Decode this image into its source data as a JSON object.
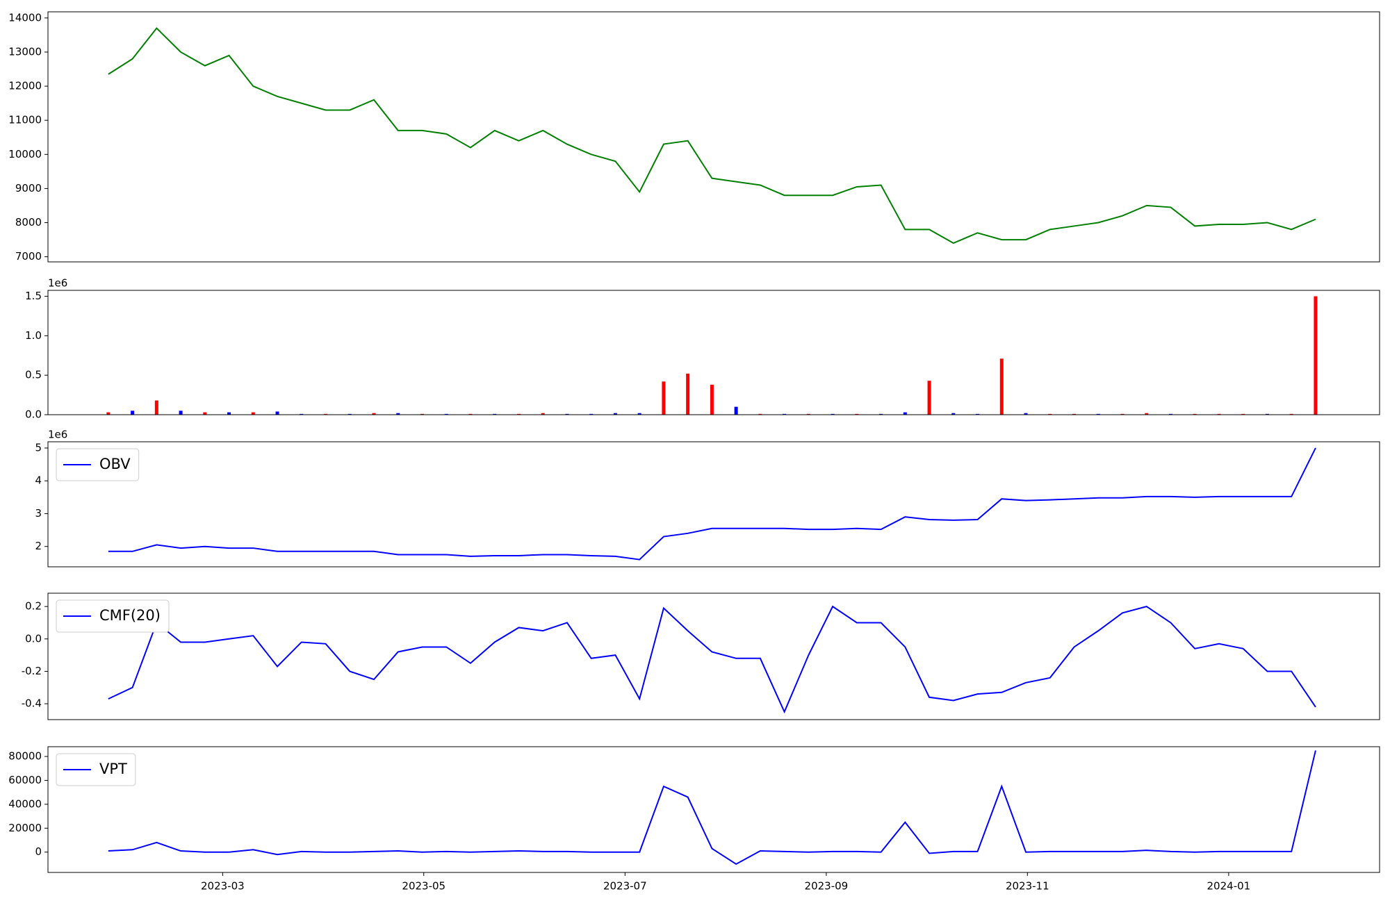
{
  "chart_data": [
    {
      "type": "line",
      "x": [
        2023.072,
        2023.092,
        2023.112,
        2023.132,
        2023.152,
        2023.172,
        2023.192,
        2023.212,
        2023.232,
        2023.252,
        2023.272,
        2023.292,
        2023.312,
        2023.332,
        2023.352,
        2023.372,
        2023.392,
        2023.412,
        2023.432,
        2023.452,
        2023.472,
        2023.492,
        2023.512,
        2023.532,
        2023.552,
        2023.572,
        2023.592,
        2023.612,
        2023.632,
        2023.652,
        2023.672,
        2023.692,
        2023.712,
        2023.732,
        2023.752,
        2023.772,
        2023.792,
        2023.812,
        2023.832,
        2023.852,
        2023.872,
        2023.892,
        2023.912,
        2023.932,
        2023.952,
        2023.972,
        2023.992,
        2024.012,
        2024.032,
        2024.052,
        2024.072
      ],
      "series": [
        {
          "color": "#008000",
          "values": [
            12350,
            12800,
            13700,
            13000,
            12600,
            12900,
            12000,
            11700,
            11500,
            11300,
            11300,
            11600,
            10700,
            10700,
            10600,
            10200,
            10700,
            10400,
            10700,
            10300,
            10000,
            9800,
            8900,
            10300,
            10400,
            9300,
            9200,
            9100,
            8800,
            8800,
            8800,
            9050,
            9100,
            7800,
            7800,
            7400,
            7700,
            7500,
            7500,
            7800,
            7900,
            8000,
            8200,
            8500,
            8450,
            7900,
            7950,
            7950,
            8000,
            7800,
            8100
          ]
        }
      ],
      "xlim": [
        2023.022,
        2024.125
      ],
      "ylim": [
        6850,
        14180
      ],
      "yticks": [
        7000,
        8000,
        9000,
        10000,
        11000,
        12000,
        13000,
        14000
      ]
    },
    {
      "type": "bar",
      "x": [
        2023.072,
        2023.092,
        2023.112,
        2023.132,
        2023.152,
        2023.172,
        2023.192,
        2023.212,
        2023.232,
        2023.252,
        2023.272,
        2023.292,
        2023.312,
        2023.332,
        2023.352,
        2023.372,
        2023.392,
        2023.412,
        2023.432,
        2023.452,
        2023.472,
        2023.492,
        2023.512,
        2023.532,
        2023.552,
        2023.572,
        2023.592,
        2023.612,
        2023.632,
        2023.652,
        2023.672,
        2023.692,
        2023.712,
        2023.732,
        2023.752,
        2023.772,
        2023.792,
        2023.812,
        2023.832,
        2023.852,
        2023.872,
        2023.892,
        2023.912,
        2023.932,
        2023.952,
        2023.972,
        2023.992,
        2024.012,
        2024.032,
        2024.052,
        2024.072
      ],
      "values": [
        0.03,
        0.05,
        0.18,
        0.05,
        0.03,
        0.03,
        0.03,
        0.04,
        0.01,
        0.01,
        0.01,
        0.02,
        0.02,
        0.01,
        0.01,
        0.01,
        0.01,
        0.01,
        0.02,
        0.01,
        0.01,
        0.02,
        0.02,
        0.42,
        0.52,
        0.38,
        0.1,
        0.01,
        0.01,
        0.01,
        0.01,
        0.01,
        0.01,
        0.03,
        0.43,
        0.02,
        0.01,
        0.71,
        0.02,
        0.01,
        0.01,
        0.01,
        0.01,
        0.02,
        0.01,
        0.01,
        0.01,
        0.01,
        0.01,
        0.01,
        1.5
      ],
      "colors": [
        "#ff0000",
        "#0000ff",
        "#ff0000",
        "#0000ff",
        "#ff0000",
        "#0000ff",
        "#ff0000",
        "#0000ff",
        "#0000ff",
        "#ff0000",
        "#0000ff",
        "#ff0000",
        "#0000ff",
        "#ff0000",
        "#0000ff",
        "#ff0000",
        "#0000ff",
        "#ff0000",
        "#ff0000",
        "#0000ff",
        "#0000ff",
        "#0000ff",
        "#0000ff",
        "#ff0000",
        "#ff0000",
        "#ff0000",
        "#0000ff",
        "#ff0000",
        "#0000ff",
        "#ff0000",
        "#0000ff",
        "#ff0000",
        "#0000ff",
        "#0000ff",
        "#ff0000",
        "#0000ff",
        "#0000ff",
        "#ff0000",
        "#0000ff",
        "#ff0000",
        "#ff0000",
        "#0000ff",
        "#ff0000",
        "#ff0000",
        "#0000ff",
        "#ff0000",
        "#ff0000",
        "#ff0000",
        "#0000ff",
        "#ff0000",
        "#ff0000"
      ],
      "xlim": [
        2023.022,
        2024.125
      ],
      "ylim": [
        0,
        1.575
      ],
      "yticks": [
        {
          "value": 0,
          "label": "0.0"
        },
        0.5,
        {
          "value": 1,
          "label": "1.0"
        },
        1.5
      ],
      "y_offset_label": "1e6"
    },
    {
      "type": "line",
      "x": [
        2023.072,
        2023.092,
        2023.112,
        2023.132,
        2023.152,
        2023.172,
        2023.192,
        2023.212,
        2023.232,
        2023.252,
        2023.272,
        2023.292,
        2023.312,
        2023.332,
        2023.352,
        2023.372,
        2023.392,
        2023.412,
        2023.432,
        2023.452,
        2023.472,
        2023.492,
        2023.512,
        2023.532,
        2023.552,
        2023.572,
        2023.592,
        2023.612,
        2023.632,
        2023.652,
        2023.672,
        2023.692,
        2023.712,
        2023.732,
        2023.752,
        2023.772,
        2023.792,
        2023.812,
        2023.832,
        2023.852,
        2023.872,
        2023.892,
        2023.912,
        2023.932,
        2023.952,
        2023.972,
        2023.992,
        2024.012,
        2024.032,
        2024.052,
        2024.072
      ],
      "series": [
        {
          "name": "OBV",
          "color": "#0000ff",
          "values": [
            1.85,
            1.85,
            2.05,
            1.95,
            2.0,
            1.95,
            1.95,
            1.85,
            1.85,
            1.85,
            1.85,
            1.85,
            1.75,
            1.75,
            1.75,
            1.7,
            1.72,
            1.72,
            1.75,
            1.75,
            1.72,
            1.7,
            1.6,
            2.3,
            2.4,
            2.55,
            2.55,
            2.55,
            2.55,
            2.52,
            2.52,
            2.55,
            2.52,
            2.9,
            2.82,
            2.8,
            2.82,
            3.45,
            3.4,
            3.42,
            3.45,
            3.48,
            3.48,
            3.52,
            3.52,
            3.5,
            3.52,
            3.52,
            3.52,
            3.52,
            5.0
          ]
        }
      ],
      "xlim": [
        2023.022,
        2024.125
      ],
      "ylim": [
        1.38,
        5.19
      ],
      "yticks": [
        2,
        3,
        4,
        5
      ],
      "y_offset_label": "1e6",
      "legend": "upper left"
    },
    {
      "type": "line",
      "x": [
        2023.072,
        2023.092,
        2023.112,
        2023.132,
        2023.152,
        2023.172,
        2023.192,
        2023.212,
        2023.232,
        2023.252,
        2023.272,
        2023.292,
        2023.312,
        2023.332,
        2023.352,
        2023.372,
        2023.392,
        2023.412,
        2023.432,
        2023.452,
        2023.472,
        2023.492,
        2023.512,
        2023.532,
        2023.552,
        2023.572,
        2023.592,
        2023.612,
        2023.632,
        2023.652,
        2023.672,
        2023.692,
        2023.712,
        2023.732,
        2023.752,
        2023.772,
        2023.792,
        2023.812,
        2023.832,
        2023.852,
        2023.872,
        2023.892,
        2023.912,
        2023.932,
        2023.952,
        2023.972,
        2023.992,
        2024.012,
        2024.032,
        2024.052,
        2024.072
      ],
      "series": [
        {
          "name": "CMF(20)",
          "color": "#0000ff",
          "values": [
            -0.37,
            -0.3,
            0.1,
            -0.02,
            -0.02,
            0.0,
            0.02,
            -0.17,
            -0.02,
            -0.03,
            -0.2,
            -0.25,
            -0.08,
            -0.05,
            -0.05,
            -0.15,
            -0.02,
            0.07,
            0.05,
            0.1,
            -0.12,
            -0.1,
            -0.37,
            0.19,
            0.05,
            -0.08,
            -0.12,
            -0.12,
            -0.45,
            -0.1,
            0.2,
            0.1,
            0.1,
            -0.05,
            -0.36,
            -0.38,
            -0.34,
            -0.33,
            -0.27,
            -0.24,
            -0.05,
            0.05,
            0.16,
            0.2,
            0.1,
            -0.06,
            -0.03,
            -0.06,
            -0.2,
            -0.2,
            -0.42
          ]
        }
      ],
      "xlim": [
        2023.022,
        2024.125
      ],
      "ylim": [
        -0.498,
        0.282
      ],
      "yticks": [
        -0.4,
        -0.2,
        {
          "value": 0,
          "label": "0.0"
        },
        0.2
      ],
      "legend": "upper left"
    },
    {
      "type": "line",
      "x": [
        2023.072,
        2023.092,
        2023.112,
        2023.132,
        2023.152,
        2023.172,
        2023.192,
        2023.212,
        2023.232,
        2023.252,
        2023.272,
        2023.292,
        2023.312,
        2023.332,
        2023.352,
        2023.372,
        2023.392,
        2023.412,
        2023.432,
        2023.452,
        2023.472,
        2023.492,
        2023.512,
        2023.532,
        2023.552,
        2023.572,
        2023.592,
        2023.612,
        2023.632,
        2023.652,
        2023.672,
        2023.692,
        2023.712,
        2023.732,
        2023.752,
        2023.772,
        2023.792,
        2023.812,
        2023.832,
        2023.852,
        2023.872,
        2023.892,
        2023.912,
        2023.932,
        2023.952,
        2023.972,
        2023.992,
        2024.012,
        2024.032,
        2024.052,
        2024.072
      ],
      "series": [
        {
          "name": "VPT",
          "color": "#0000ff",
          "values": [
            1000,
            2000,
            8000,
            1000,
            0,
            0,
            2000,
            -2000,
            500,
            0,
            0,
            500,
            1000,
            0,
            500,
            0,
            500,
            1000,
            500,
            500,
            0,
            0,
            0,
            55000,
            46000,
            3000,
            -10000,
            1000,
            500,
            0,
            500,
            500,
            0,
            25000,
            -1000,
            500,
            500,
            55000,
            0,
            500,
            500,
            500,
            500,
            1500,
            500,
            0,
            500,
            500,
            500,
            500,
            85000
          ]
        }
      ],
      "xlim": [
        2023.022,
        2024.125
      ],
      "ylim": [
        -17000,
        88150
      ],
      "yticks": [
        0,
        20000,
        40000,
        60000,
        80000
      ],
      "xticks": [
        {
          "value": 2023.1667,
          "label": "2023-03"
        },
        {
          "value": 2023.3333,
          "label": "2023-05"
        },
        {
          "value": 2023.5,
          "label": "2023-07"
        },
        {
          "value": 2023.6667,
          "label": "2023-09"
        },
        {
          "value": 2023.8333,
          "label": "2023-11"
        },
        {
          "value": 2024.0,
          "label": "2024-01"
        }
      ],
      "legend": "upper left"
    }
  ]
}
